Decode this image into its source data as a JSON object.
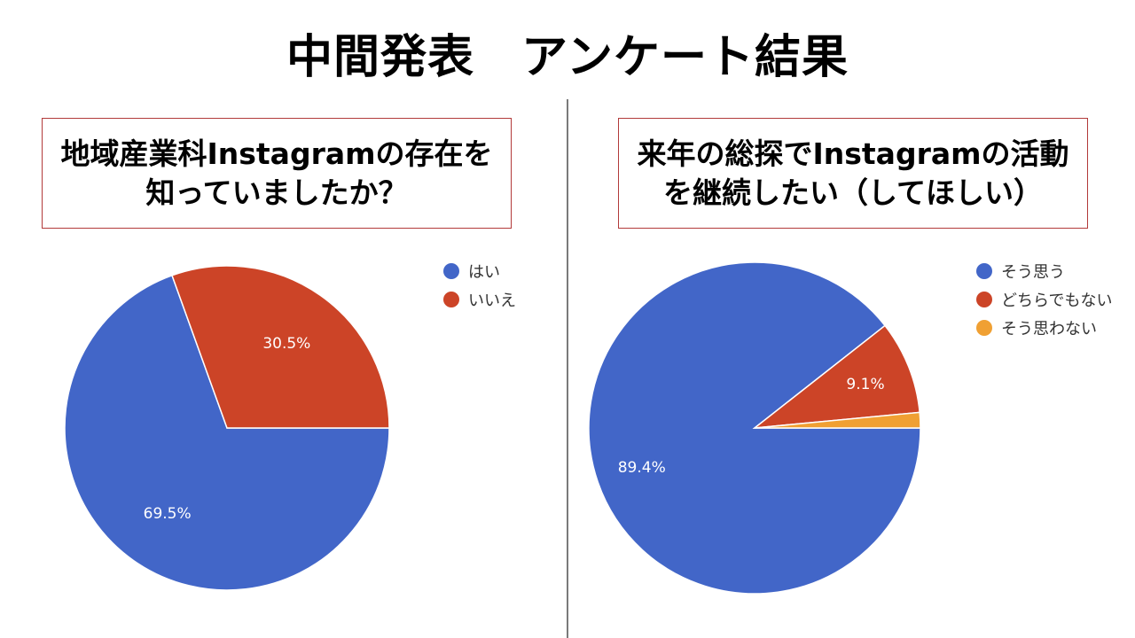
{
  "title": "中間発表　アンケート結果",
  "colors": {
    "blue": "#4266c8",
    "red": "#cc4427",
    "orange": "#f0a033",
    "border": "#b23a3a"
  },
  "chart_data": [
    {
      "type": "pie",
      "title": "地域産業科Instagramの存在を\n知っていましたか？",
      "categories": [
        "はい",
        "いいえ"
      ],
      "values": [
        69.5,
        30.5
      ],
      "labels": [
        "69.5%",
        "30.5%"
      ],
      "colors": [
        "#4266c8",
        "#cc4427"
      ],
      "legend_placement": "top-right"
    },
    {
      "type": "pie",
      "title": "来年の総探でInstagramの活動\nを継続したい（してほしい）",
      "categories": [
        "そう思う",
        "どちらでもない",
        "そう思わない"
      ],
      "values": [
        89.4,
        9.1,
        1.5
      ],
      "labels": [
        "89.4%",
        "9.1%",
        ""
      ],
      "colors": [
        "#4266c8",
        "#cc4427",
        "#f0a033"
      ],
      "legend_placement": "top-right"
    }
  ]
}
